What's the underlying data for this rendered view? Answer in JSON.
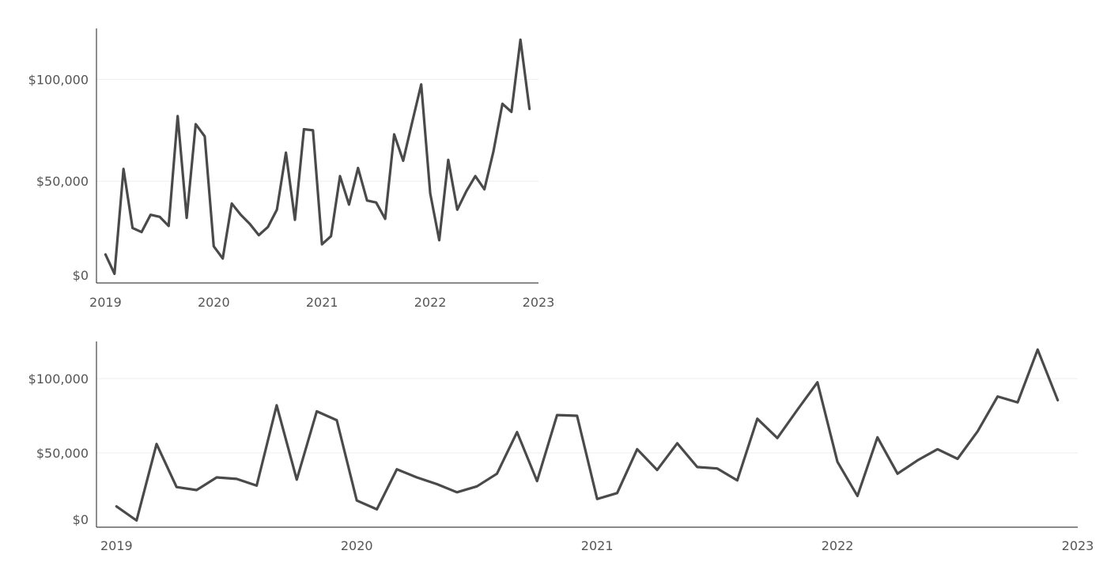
{
  "chart_data": [
    {
      "type": "line",
      "title": "",
      "xlabel": "",
      "ylabel": "",
      "xlim": [
        "2018-12",
        "2023-01"
      ],
      "ylim": [
        0,
        125000
      ],
      "grid": "horizontal",
      "colors": {
        "line": "#4a4a4a",
        "grid": "#eeeeee",
        "axis": "#444444",
        "text": "#555555"
      },
      "x_ticks": [
        {
          "label": "2019",
          "date": "2019-01"
        },
        {
          "label": "2020",
          "date": "2020-01"
        },
        {
          "label": "2021",
          "date": "2021-01"
        },
        {
          "label": "2022",
          "date": "2022-01"
        },
        {
          "label": "2023",
          "date": "2023-01"
        }
      ],
      "y_ticks": [
        {
          "label": "$0",
          "value": 0
        },
        {
          "label": "$50,000",
          "value": 50000
        },
        {
          "label": "$100,000",
          "value": 100000
        }
      ],
      "series": [
        {
          "x": [
            "2019-01",
            "2019-02",
            "2019-03",
            "2019-04",
            "2019-05",
            "2019-06",
            "2019-07",
            "2019-08",
            "2019-09",
            "2019-10",
            "2019-11",
            "2019-12",
            "2020-01",
            "2020-02",
            "2020-03",
            "2020-04",
            "2020-05",
            "2020-06",
            "2020-07",
            "2020-08",
            "2020-09",
            "2020-10",
            "2020-11",
            "2020-12",
            "2021-01",
            "2021-02",
            "2021-03",
            "2021-04",
            "2021-05",
            "2021-06",
            "2021-07",
            "2021-08",
            "2021-09",
            "2021-10",
            "2021-11",
            "2021-12",
            "2022-01",
            "2022-02",
            "2022-03",
            "2022-04",
            "2022-05",
            "2022-06",
            "2022-07",
            "2022-08",
            "2022-09",
            "2022-10",
            "2022-11",
            "2022-12"
          ],
          "values": [
            14000,
            4500,
            56000,
            27000,
            25000,
            33500,
            32500,
            28000,
            82000,
            32000,
            78000,
            72000,
            18000,
            12000,
            39000,
            33500,
            29000,
            23500,
            27500,
            36000,
            64000,
            31000,
            75500,
            75000,
            19000,
            23000,
            52500,
            38500,
            56500,
            40500,
            39500,
            31500,
            73000,
            60000,
            79000,
            97500,
            44000,
            21000,
            60500,
            36000,
            45000,
            52500,
            46000,
            64500,
            88000,
            84000,
            119500,
            85500
          ]
        }
      ]
    },
    {
      "type": "line",
      "title": "",
      "xlabel": "",
      "ylabel": "",
      "xlim": [
        "2018-12",
        "2023-01"
      ],
      "ylim": [
        0,
        125000
      ],
      "grid": "horizontal",
      "colors": {
        "line": "#4a4a4a",
        "grid": "#eeeeee",
        "axis": "#444444",
        "text": "#555555"
      },
      "x_ticks": [
        {
          "label": "2019",
          "date": "2019-01"
        },
        {
          "label": "2020",
          "date": "2020-01"
        },
        {
          "label": "2021",
          "date": "2021-01"
        },
        {
          "label": "2022",
          "date": "2022-01"
        },
        {
          "label": "2023",
          "date": "2023-01"
        }
      ],
      "y_ticks": [
        {
          "label": "$0",
          "value": 0
        },
        {
          "label": "$50,000",
          "value": 50000
        },
        {
          "label": "$100,000",
          "value": 100000
        }
      ],
      "series": [
        {
          "x": [
            "2019-01",
            "2019-02",
            "2019-03",
            "2019-04",
            "2019-05",
            "2019-06",
            "2019-07",
            "2019-08",
            "2019-09",
            "2019-10",
            "2019-11",
            "2019-12",
            "2020-01",
            "2020-02",
            "2020-03",
            "2020-04",
            "2020-05",
            "2020-06",
            "2020-07",
            "2020-08",
            "2020-09",
            "2020-10",
            "2020-11",
            "2020-12",
            "2021-01",
            "2021-02",
            "2021-03",
            "2021-04",
            "2021-05",
            "2021-06",
            "2021-07",
            "2021-08",
            "2021-09",
            "2021-10",
            "2021-11",
            "2021-12",
            "2022-01",
            "2022-02",
            "2022-03",
            "2022-04",
            "2022-05",
            "2022-06",
            "2022-07",
            "2022-08",
            "2022-09",
            "2022-10",
            "2022-11",
            "2022-12"
          ],
          "values": [
            14000,
            4500,
            56000,
            27000,
            25000,
            33500,
            32500,
            28000,
            82000,
            32000,
            78000,
            72000,
            18000,
            12000,
            39000,
            33500,
            29000,
            23500,
            27500,
            36000,
            64000,
            31000,
            75500,
            75000,
            19000,
            23000,
            52500,
            38500,
            56500,
            40500,
            39500,
            31500,
            73000,
            60000,
            79000,
            97500,
            44000,
            21000,
            60500,
            36000,
            45000,
            52500,
            46000,
            64500,
            88000,
            84000,
            119500,
            85500
          ]
        }
      ]
    }
  ]
}
